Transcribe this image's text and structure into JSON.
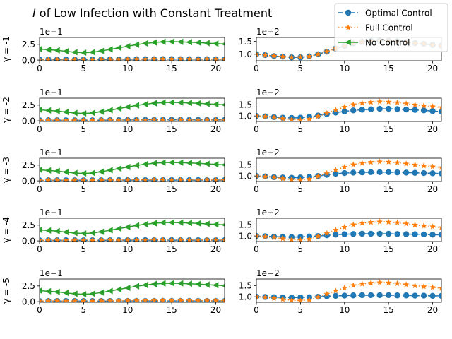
{
  "figure": {
    "title_italic": "I",
    "title_rest": " of Low Infection with Constant Treatment"
  },
  "legend": {
    "entries": [
      {
        "label": "Optimal Control",
        "color": "#1f77b4",
        "marker": "circle",
        "dash": "dashed"
      },
      {
        "label": "Full Control",
        "color": "#ff7f0e",
        "marker": "star",
        "dash": "dotted"
      },
      {
        "label": "No Control",
        "color": "#2ca02c",
        "marker": "triangle-left",
        "dash": "solid"
      }
    ]
  },
  "chart_data": [
    {
      "type": "line",
      "row": 0,
      "col": 0,
      "ylabel": "γ = -1",
      "offset_text": "1e−1",
      "xlim": [
        0,
        21
      ],
      "ylim": [
        -0.1,
        3.6
      ],
      "xticks": [
        0,
        5,
        10,
        15,
        20
      ],
      "yticks": [
        0.0,
        2.5
      ],
      "ytick_labels": [
        "0.0",
        "2.5"
      ],
      "x": [
        0,
        1,
        2,
        3,
        4,
        5,
        6,
        7,
        8,
        9,
        10,
        11,
        12,
        13,
        14,
        15,
        16,
        17,
        18,
        19,
        20,
        21
      ],
      "series": [
        {
          "name": "Optimal Control",
          "values": [
            0.1,
            0.097,
            0.093,
            0.091,
            0.088,
            0.088,
            0.092,
            0.1,
            0.11,
            0.12,
            0.13,
            0.14,
            0.145,
            0.15,
            0.152,
            0.152,
            0.15,
            0.147,
            0.143,
            0.14,
            0.136,
            0.133
          ]
        },
        {
          "name": "Full Control",
          "values": [
            0.1,
            0.097,
            0.093,
            0.091,
            0.088,
            0.088,
            0.092,
            0.1,
            0.11,
            0.12,
            0.13,
            0.14,
            0.145,
            0.15,
            0.152,
            0.152,
            0.15,
            0.147,
            0.143,
            0.14,
            0.136,
            0.133
          ]
        },
        {
          "name": "No Control",
          "values": [
            1.75,
            1.65,
            1.55,
            1.4,
            1.25,
            1.18,
            1.25,
            1.45,
            1.7,
            1.95,
            2.2,
            2.45,
            2.65,
            2.8,
            2.9,
            2.92,
            2.9,
            2.85,
            2.78,
            2.7,
            2.62,
            2.55
          ]
        }
      ]
    },
    {
      "type": "line",
      "row": 0,
      "col": 1,
      "ylabel": "",
      "offset_text": "1e−2",
      "xlim": [
        0,
        21
      ],
      "ylim": [
        0.75,
        1.65
      ],
      "xticks": [
        0,
        5,
        10,
        15,
        20
      ],
      "yticks": [
        1.0,
        1.5
      ],
      "ytick_labels": [
        "1.0",
        "1.5"
      ],
      "x": [
        0,
        1,
        2,
        3,
        4,
        5,
        6,
        7,
        8,
        9,
        10,
        11,
        12,
        13,
        14,
        15,
        16,
        17,
        18,
        19,
        20,
        21
      ],
      "series": [
        {
          "name": "Optimal Control",
          "values": [
            1.0,
            0.97,
            0.93,
            0.91,
            0.88,
            0.88,
            0.92,
            1.0,
            1.1,
            1.22,
            1.32,
            1.42,
            1.48,
            1.52,
            1.53,
            1.52,
            1.5,
            1.47,
            1.43,
            1.4,
            1.36,
            1.33
          ]
        },
        {
          "name": "Full Control",
          "values": [
            1.0,
            0.97,
            0.93,
            0.91,
            0.88,
            0.88,
            0.92,
            1.0,
            1.1,
            1.22,
            1.32,
            1.42,
            1.48,
            1.52,
            1.53,
            1.52,
            1.5,
            1.47,
            1.43,
            1.4,
            1.36,
            1.33
          ]
        }
      ]
    },
    {
      "type": "line",
      "row": 1,
      "col": 0,
      "ylabel": "γ = -2",
      "offset_text": "1e−1",
      "xlim": [
        0,
        21
      ],
      "ylim": [
        -0.1,
        3.6
      ],
      "xticks": [
        0,
        5,
        10,
        15,
        20
      ],
      "yticks": [
        0.0,
        2.5
      ],
      "ytick_labels": [
        "0.0",
        "2.5"
      ],
      "x": [
        0,
        1,
        2,
        3,
        4,
        5,
        6,
        7,
        8,
        9,
        10,
        11,
        12,
        13,
        14,
        15,
        16,
        17,
        18,
        19,
        20,
        21
      ],
      "series": [
        {
          "name": "Optimal Control",
          "values": [
            0.1,
            0.097,
            0.093,
            0.091,
            0.088,
            0.088,
            0.092,
            0.1,
            0.11,
            0.12,
            0.13,
            0.14,
            0.145,
            0.15,
            0.152,
            0.152,
            0.15,
            0.147,
            0.143,
            0.14,
            0.136,
            0.133
          ]
        },
        {
          "name": "Full Control",
          "values": [
            0.1,
            0.097,
            0.093,
            0.091,
            0.088,
            0.088,
            0.092,
            0.1,
            0.11,
            0.12,
            0.13,
            0.14,
            0.145,
            0.15,
            0.152,
            0.152,
            0.15,
            0.147,
            0.143,
            0.14,
            0.136,
            0.133
          ]
        },
        {
          "name": "No Control",
          "values": [
            1.75,
            1.65,
            1.55,
            1.4,
            1.25,
            1.18,
            1.25,
            1.45,
            1.7,
            1.95,
            2.2,
            2.45,
            2.65,
            2.8,
            2.9,
            2.92,
            2.9,
            2.85,
            2.78,
            2.7,
            2.62,
            2.55
          ]
        }
      ]
    },
    {
      "type": "line",
      "row": 1,
      "col": 1,
      "ylabel": "",
      "offset_text": "1e−2",
      "xlim": [
        0,
        21
      ],
      "ylim": [
        0.75,
        1.8
      ],
      "xticks": [
        0,
        5,
        10,
        15,
        20
      ],
      "yticks": [
        1.0,
        1.5
      ],
      "ytick_labels": [
        "1.0",
        "1.5"
      ],
      "x": [
        0,
        1,
        2,
        3,
        4,
        5,
        6,
        7,
        8,
        9,
        10,
        11,
        12,
        13,
        14,
        15,
        16,
        17,
        18,
        19,
        20,
        21
      ],
      "series": [
        {
          "name": "Optimal Control",
          "values": [
            1.0,
            0.98,
            0.95,
            0.92,
            0.91,
            0.92,
            0.96,
            1.02,
            1.08,
            1.15,
            1.2,
            1.25,
            1.28,
            1.3,
            1.32,
            1.32,
            1.31,
            1.29,
            1.27,
            1.25,
            1.22,
            1.19
          ]
        },
        {
          "name": "Full Control",
          "values": [
            1.0,
            0.97,
            0.93,
            0.88,
            0.84,
            0.82,
            0.86,
            0.98,
            1.12,
            1.27,
            1.4,
            1.51,
            1.58,
            1.62,
            1.64,
            1.63,
            1.6,
            1.55,
            1.5,
            1.46,
            1.42,
            1.38
          ]
        }
      ]
    },
    {
      "type": "line",
      "row": 2,
      "col": 0,
      "ylabel": "γ = -3",
      "offset_text": "1e−1",
      "xlim": [
        0,
        21
      ],
      "ylim": [
        -0.1,
        3.6
      ],
      "xticks": [
        0,
        5,
        10,
        15,
        20
      ],
      "yticks": [
        0.0,
        2.5
      ],
      "ytick_labels": [
        "0.0",
        "2.5"
      ],
      "x": [
        0,
        1,
        2,
        3,
        4,
        5,
        6,
        7,
        8,
        9,
        10,
        11,
        12,
        13,
        14,
        15,
        16,
        17,
        18,
        19,
        20,
        21
      ],
      "series": [
        {
          "name": "Optimal Control",
          "values": [
            0.1,
            0.098,
            0.095,
            0.093,
            0.092,
            0.093,
            0.096,
            0.1,
            0.105,
            0.11,
            0.113,
            0.115,
            0.116,
            0.117,
            0.117,
            0.117,
            0.116,
            0.115,
            0.114,
            0.113,
            0.112,
            0.111
          ]
        },
        {
          "name": "Full Control",
          "values": [
            0.1,
            0.097,
            0.093,
            0.088,
            0.084,
            0.082,
            0.086,
            0.098,
            0.112,
            0.127,
            0.14,
            0.151,
            0.158,
            0.162,
            0.164,
            0.163,
            0.16,
            0.155,
            0.15,
            0.146,
            0.142,
            0.138
          ]
        },
        {
          "name": "No Control",
          "values": [
            1.75,
            1.65,
            1.55,
            1.4,
            1.25,
            1.18,
            1.25,
            1.45,
            1.7,
            1.95,
            2.2,
            2.45,
            2.65,
            2.8,
            2.9,
            2.92,
            2.9,
            2.85,
            2.78,
            2.7,
            2.62,
            2.55
          ]
        }
      ]
    },
    {
      "type": "line",
      "row": 2,
      "col": 1,
      "ylabel": "",
      "offset_text": "1e−2",
      "xlim": [
        0,
        21
      ],
      "ylim": [
        0.75,
        1.8
      ],
      "xticks": [
        0,
        5,
        10,
        15,
        20
      ],
      "yticks": [
        1.0,
        1.5
      ],
      "ytick_labels": [
        "1.0",
        "1.5"
      ],
      "x": [
        0,
        1,
        2,
        3,
        4,
        5,
        6,
        7,
        8,
        9,
        10,
        11,
        12,
        13,
        14,
        15,
        16,
        17,
        18,
        19,
        20,
        21
      ],
      "series": [
        {
          "name": "Optimal Control",
          "values": [
            1.0,
            0.98,
            0.95,
            0.93,
            0.92,
            0.93,
            0.96,
            1.0,
            1.05,
            1.1,
            1.13,
            1.15,
            1.16,
            1.17,
            1.17,
            1.17,
            1.16,
            1.15,
            1.14,
            1.13,
            1.12,
            1.11
          ]
        },
        {
          "name": "Full Control",
          "values": [
            1.0,
            0.97,
            0.93,
            0.88,
            0.84,
            0.82,
            0.86,
            0.98,
            1.12,
            1.27,
            1.4,
            1.51,
            1.58,
            1.62,
            1.64,
            1.63,
            1.6,
            1.55,
            1.5,
            1.46,
            1.42,
            1.38
          ]
        }
      ]
    },
    {
      "type": "line",
      "row": 3,
      "col": 0,
      "ylabel": "γ = -4",
      "offset_text": "1e−1",
      "xlim": [
        0,
        21
      ],
      "ylim": [
        -0.1,
        3.6
      ],
      "xticks": [
        0,
        5,
        10,
        15,
        20
      ],
      "yticks": [
        0.0,
        2.5
      ],
      "ytick_labels": [
        "0.0",
        "2.5"
      ],
      "x": [
        0,
        1,
        2,
        3,
        4,
        5,
        6,
        7,
        8,
        9,
        10,
        11,
        12,
        13,
        14,
        15,
        16,
        17,
        18,
        19,
        20,
        21
      ],
      "series": [
        {
          "name": "Optimal Control",
          "values": [
            0.1,
            0.099,
            0.097,
            0.096,
            0.095,
            0.096,
            0.098,
            0.1,
            0.103,
            0.106,
            0.108,
            0.109,
            0.11,
            0.11,
            0.11,
            0.11,
            0.109,
            0.108,
            0.108,
            0.107,
            0.106,
            0.105
          ]
        },
        {
          "name": "Full Control",
          "values": [
            0.1,
            0.097,
            0.093,
            0.088,
            0.084,
            0.082,
            0.086,
            0.098,
            0.112,
            0.127,
            0.14,
            0.151,
            0.158,
            0.162,
            0.164,
            0.163,
            0.16,
            0.155,
            0.15,
            0.146,
            0.142,
            0.138
          ]
        },
        {
          "name": "No Control",
          "values": [
            1.75,
            1.65,
            1.55,
            1.4,
            1.25,
            1.18,
            1.25,
            1.45,
            1.7,
            1.95,
            2.2,
            2.45,
            2.65,
            2.8,
            2.9,
            2.92,
            2.9,
            2.85,
            2.78,
            2.7,
            2.62,
            2.55
          ]
        }
      ]
    },
    {
      "type": "line",
      "row": 3,
      "col": 1,
      "ylabel": "",
      "offset_text": "1e−2",
      "xlim": [
        0,
        21
      ],
      "ylim": [
        0.75,
        1.8
      ],
      "xticks": [
        0,
        5,
        10,
        15,
        20
      ],
      "yticks": [
        1.0,
        1.5
      ],
      "ytick_labels": [
        "1.0",
        "1.5"
      ],
      "x": [
        0,
        1,
        2,
        3,
        4,
        5,
        6,
        7,
        8,
        9,
        10,
        11,
        12,
        13,
        14,
        15,
        16,
        17,
        18,
        19,
        20,
        21
      ],
      "series": [
        {
          "name": "Optimal Control",
          "values": [
            1.0,
            0.99,
            0.97,
            0.96,
            0.95,
            0.96,
            0.98,
            1.0,
            1.03,
            1.06,
            1.08,
            1.09,
            1.1,
            1.1,
            1.1,
            1.1,
            1.09,
            1.08,
            1.08,
            1.07,
            1.06,
            1.05
          ]
        },
        {
          "name": "Full Control",
          "values": [
            1.0,
            0.97,
            0.93,
            0.88,
            0.84,
            0.82,
            0.86,
            0.98,
            1.12,
            1.27,
            1.4,
            1.51,
            1.58,
            1.62,
            1.64,
            1.63,
            1.6,
            1.55,
            1.5,
            1.46,
            1.42,
            1.38
          ]
        }
      ]
    },
    {
      "type": "line",
      "row": 4,
      "col": 0,
      "ylabel": "γ = -5",
      "offset_text": "1e−1",
      "xlim": [
        0,
        21
      ],
      "ylim": [
        -0.1,
        3.6
      ],
      "xticks": [
        0,
        5,
        10,
        15,
        20
      ],
      "yticks": [
        0.0,
        2.5
      ],
      "ytick_labels": [
        "0.0",
        "2.5"
      ],
      "x": [
        0,
        1,
        2,
        3,
        4,
        5,
        6,
        7,
        8,
        9,
        10,
        11,
        12,
        13,
        14,
        15,
        16,
        17,
        18,
        19,
        20,
        21
      ],
      "series": [
        {
          "name": "Optimal Control",
          "values": [
            0.1,
            0.099,
            0.098,
            0.097,
            0.096,
            0.097,
            0.098,
            0.1,
            0.102,
            0.104,
            0.105,
            0.106,
            0.107,
            0.107,
            0.107,
            0.107,
            0.106,
            0.106,
            0.105,
            0.105,
            0.104,
            0.104
          ]
        },
        {
          "name": "Full Control",
          "values": [
            0.1,
            0.097,
            0.093,
            0.088,
            0.084,
            0.082,
            0.086,
            0.098,
            0.112,
            0.127,
            0.14,
            0.151,
            0.158,
            0.162,
            0.164,
            0.163,
            0.16,
            0.155,
            0.15,
            0.146,
            0.142,
            0.138
          ]
        },
        {
          "name": "No Control",
          "values": [
            1.75,
            1.65,
            1.55,
            1.4,
            1.25,
            1.18,
            1.25,
            1.45,
            1.7,
            1.95,
            2.2,
            2.45,
            2.65,
            2.8,
            2.9,
            2.92,
            2.9,
            2.85,
            2.78,
            2.7,
            2.62,
            2.55
          ]
        }
      ]
    },
    {
      "type": "line",
      "row": 4,
      "col": 1,
      "ylabel": "",
      "offset_text": "1e−2",
      "xlim": [
        0,
        21
      ],
      "ylim": [
        0.75,
        1.8
      ],
      "xticks": [
        0,
        5,
        10,
        15,
        20
      ],
      "yticks": [
        1.0,
        1.5
      ],
      "ytick_labels": [
        "1.0",
        "1.5"
      ],
      "x": [
        0,
        1,
        2,
        3,
        4,
        5,
        6,
        7,
        8,
        9,
        10,
        11,
        12,
        13,
        14,
        15,
        16,
        17,
        18,
        19,
        20,
        21
      ],
      "series": [
        {
          "name": "Optimal Control",
          "values": [
            1.0,
            0.99,
            0.98,
            0.97,
            0.96,
            0.97,
            0.98,
            1.0,
            1.02,
            1.04,
            1.05,
            1.06,
            1.07,
            1.07,
            1.07,
            1.07,
            1.06,
            1.06,
            1.05,
            1.05,
            1.04,
            1.04
          ]
        },
        {
          "name": "Full Control",
          "values": [
            1.0,
            0.97,
            0.93,
            0.88,
            0.84,
            0.82,
            0.86,
            0.98,
            1.12,
            1.27,
            1.4,
            1.51,
            1.58,
            1.62,
            1.64,
            1.63,
            1.6,
            1.55,
            1.5,
            1.46,
            1.42,
            1.38
          ]
        }
      ]
    }
  ]
}
